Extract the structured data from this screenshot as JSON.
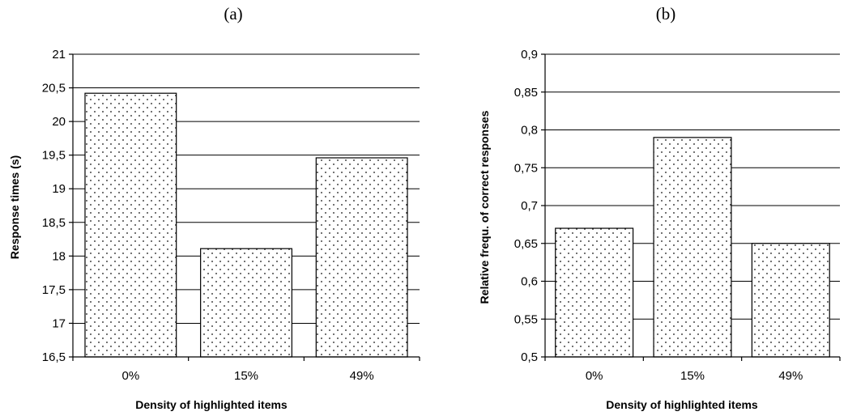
{
  "chart_data": [
    {
      "type": "bar",
      "panel_label": "(a)",
      "categories": [
        "0%",
        "15%",
        "49%"
      ],
      "values": [
        20.42,
        18.11,
        19.46
      ],
      "xlabel": "Density of highlighted items",
      "ylabel": "Response times (s)",
      "ylim": [
        16.5,
        21
      ],
      "yticks": [
        "16,5",
        "17",
        "17,5",
        "18",
        "18,5",
        "19",
        "19,5",
        "20",
        "20,5",
        "21"
      ],
      "grid": true,
      "bar_fill": "dotted"
    },
    {
      "type": "bar",
      "panel_label": "(b)",
      "categories": [
        "0%",
        "15%",
        "49%"
      ],
      "values": [
        0.67,
        0.79,
        0.65
      ],
      "xlabel": "Density of highlighted items",
      "ylabel": "Relative frequ. of correct responses",
      "ylim": [
        0.5,
        0.9
      ],
      "yticks": [
        "0,5",
        "0,55",
        "0,6",
        "0,65",
        "0,7",
        "0,75",
        "0,8",
        "0,85",
        "0,9"
      ],
      "grid": true,
      "bar_fill": "dotted"
    }
  ],
  "colors": {
    "background": "#ffffff",
    "bar_fill": "#ffffff",
    "bar_dots": "#000000",
    "bar_stroke": "#000000",
    "grid": "#000000",
    "axis": "#000000"
  }
}
